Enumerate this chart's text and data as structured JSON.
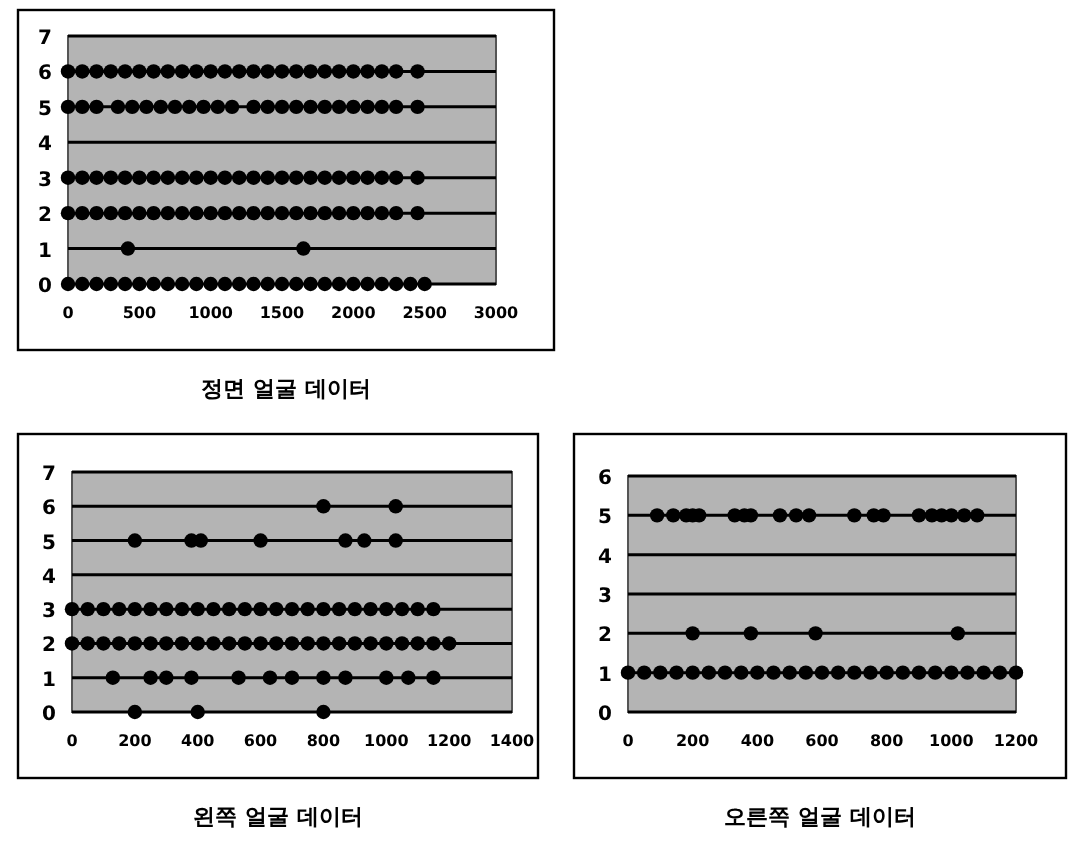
{
  "chart_data": [
    {
      "type": "scatter",
      "title": "정면 얼굴 데이터",
      "xlim": [
        0,
        3000
      ],
      "xticks": [
        0,
        500,
        1000,
        1500,
        2000,
        2500,
        3000
      ],
      "ylim": [
        0,
        7
      ],
      "yticks": [
        0,
        1,
        2,
        3,
        4,
        5,
        6,
        7
      ],
      "grid": "y",
      "marker": "circle",
      "series": [
        {
          "color": "#000000",
          "x": [
            0,
            100,
            200,
            300,
            400,
            500,
            600,
            700,
            800,
            900,
            1000,
            1100,
            1200,
            1300,
            1400,
            1500,
            1600,
            1700,
            1800,
            1900,
            2000,
            2100,
            2200,
            2300,
            2400,
            2500
          ],
          "values": [
            0,
            0,
            0,
            0,
            0,
            0,
            0,
            0,
            0,
            0,
            0,
            0,
            0,
            0,
            0,
            0,
            0,
            0,
            0,
            0,
            0,
            0,
            0,
            0,
            0,
            0
          ]
        },
        {
          "color": "#000000",
          "x": [
            420,
            1650
          ],
          "values": [
            1,
            1
          ]
        },
        {
          "color": "#000000",
          "x": [
            0,
            100,
            200,
            300,
            400,
            500,
            600,
            700,
            800,
            900,
            1000,
            1100,
            1200,
            1300,
            1400,
            1500,
            1600,
            1700,
            1800,
            1900,
            2000,
            2100,
            2200,
            2300,
            2450
          ],
          "values": [
            2,
            2,
            2,
            2,
            2,
            2,
            2,
            2,
            2,
            2,
            2,
            2,
            2,
            2,
            2,
            2,
            2,
            2,
            2,
            2,
            2,
            2,
            2,
            2,
            2
          ]
        },
        {
          "color": "#000000",
          "x": [
            0,
            100,
            200,
            300,
            400,
            500,
            600,
            700,
            800,
            900,
            1000,
            1100,
            1200,
            1300,
            1400,
            1500,
            1600,
            1700,
            1800,
            1900,
            2000,
            2100,
            2200,
            2300,
            2450
          ],
          "values": [
            3,
            3,
            3,
            3,
            3,
            3,
            3,
            3,
            3,
            3,
            3,
            3,
            3,
            3,
            3,
            3,
            3,
            3,
            3,
            3,
            3,
            3,
            3,
            3,
            3
          ]
        },
        {
          "color": "#000000",
          "x": [
            0,
            100,
            200,
            350,
            450,
            550,
            650,
            750,
            850,
            950,
            1050,
            1150,
            1300,
            1400,
            1500,
            1600,
            1700,
            1800,
            1900,
            2000,
            2100,
            2200,
            2300,
            2450
          ],
          "values": [
            5,
            5,
            5,
            5,
            5,
            5,
            5,
            5,
            5,
            5,
            5,
            5,
            5,
            5,
            5,
            5,
            5,
            5,
            5,
            5,
            5,
            5,
            5,
            5
          ]
        },
        {
          "color": "#000000",
          "x": [
            0,
            100,
            200,
            300,
            400,
            500,
            600,
            700,
            800,
            900,
            1000,
            1100,
            1200,
            1300,
            1400,
            1500,
            1600,
            1700,
            1800,
            1900,
            2000,
            2100,
            2200,
            2300,
            2450
          ],
          "values": [
            6,
            6,
            6,
            6,
            6,
            6,
            6,
            6,
            6,
            6,
            6,
            6,
            6,
            6,
            6,
            6,
            6,
            6,
            6,
            6,
            6,
            6,
            6,
            6,
            6
          ]
        }
      ]
    },
    {
      "type": "scatter",
      "title": "왼쪽 얼굴 데이터",
      "xlim": [
        0,
        1400
      ],
      "xticks": [
        0,
        200,
        400,
        600,
        800,
        1000,
        1200,
        1400
      ],
      "ylim": [
        0,
        7
      ],
      "yticks": [
        0,
        1,
        2,
        3,
        4,
        5,
        6,
        7
      ],
      "grid": "y",
      "marker": "circle",
      "series": [
        {
          "color": "#000000",
          "x": [
            200,
            400,
            800
          ],
          "values": [
            0,
            0,
            0
          ]
        },
        {
          "color": "#000000",
          "x": [
            130,
            250,
            300,
            380,
            530,
            630,
            700,
            800,
            870,
            1000,
            1070,
            1150
          ],
          "values": [
            1,
            1,
            1,
            1,
            1,
            1,
            1,
            1,
            1,
            1,
            1,
            1
          ]
        },
        {
          "color": "#000000",
          "x": [
            0,
            50,
            100,
            150,
            200,
            250,
            300,
            350,
            400,
            450,
            500,
            550,
            600,
            650,
            700,
            750,
            800,
            850,
            900,
            950,
            1000,
            1050,
            1100,
            1150,
            1200
          ],
          "values": [
            2,
            2,
            2,
            2,
            2,
            2,
            2,
            2,
            2,
            2,
            2,
            2,
            2,
            2,
            2,
            2,
            2,
            2,
            2,
            2,
            2,
            2,
            2,
            2,
            2
          ]
        },
        {
          "color": "#000000",
          "x": [
            0,
            50,
            100,
            150,
            200,
            250,
            300,
            350,
            400,
            450,
            500,
            550,
            600,
            650,
            700,
            750,
            800,
            850,
            900,
            950,
            1000,
            1050,
            1100,
            1150
          ],
          "values": [
            3,
            3,
            3,
            3,
            3,
            3,
            3,
            3,
            3,
            3,
            3,
            3,
            3,
            3,
            3,
            3,
            3,
            3,
            3,
            3,
            3,
            3,
            3,
            3
          ]
        },
        {
          "color": "#000000",
          "x": [
            200,
            380,
            410,
            600,
            870,
            930,
            1030
          ],
          "values": [
            5,
            5,
            5,
            5,
            5,
            5,
            5
          ]
        },
        {
          "color": "#000000",
          "x": [
            800,
            1030
          ],
          "values": [
            6,
            6
          ]
        }
      ]
    },
    {
      "type": "scatter",
      "title": "오른쪽 얼굴 데이터",
      "xlim": [
        0,
        1200
      ],
      "xticks": [
        0,
        200,
        400,
        600,
        800,
        1000,
        1200
      ],
      "ylim": [
        0,
        6
      ],
      "yticks": [
        0,
        1,
        2,
        3,
        4,
        5,
        6
      ],
      "grid": "y",
      "marker": "circle",
      "series": [
        {
          "color": "#000000",
          "x": [
            0,
            50,
            100,
            150,
            200,
            250,
            300,
            350,
            400,
            450,
            500,
            550,
            600,
            650,
            700,
            750,
            800,
            850,
            900,
            950,
            1000,
            1050,
            1100,
            1150,
            1200
          ],
          "values": [
            1,
            1,
            1,
            1,
            1,
            1,
            1,
            1,
            1,
            1,
            1,
            1,
            1,
            1,
            1,
            1,
            1,
            1,
            1,
            1,
            1,
            1,
            1,
            1,
            1
          ]
        },
        {
          "color": "#000000",
          "x": [
            200,
            380,
            580,
            1020
          ],
          "values": [
            2,
            2,
            2,
            2
          ]
        },
        {
          "color": "#000000",
          "x": [
            90,
            140,
            180,
            200,
            220,
            330,
            360,
            380,
            470,
            520,
            560,
            700,
            760,
            790,
            900,
            940,
            970,
            1000,
            1040,
            1080
          ],
          "values": [
            5,
            5,
            5,
            5,
            5,
            5,
            5,
            5,
            5,
            5,
            5,
            5,
            5,
            5,
            5,
            5,
            5,
            5,
            5,
            5
          ]
        }
      ]
    }
  ]
}
